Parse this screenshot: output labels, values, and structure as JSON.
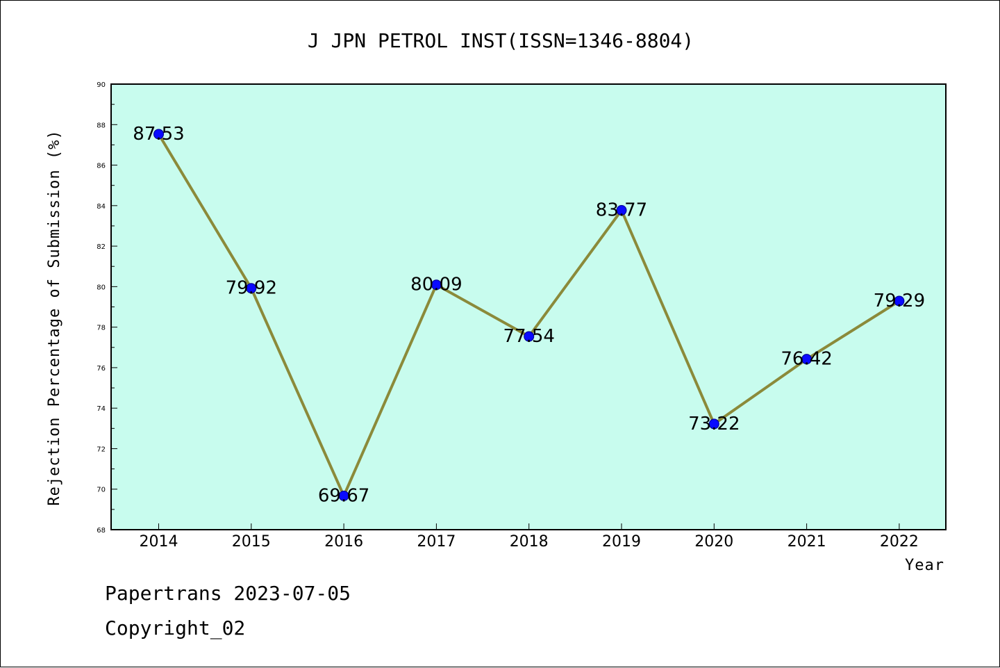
{
  "chart_data": {
    "type": "line",
    "title": "J JPN PETROL INST(ISSN=1346-8804)",
    "xlabel": "Year",
    "ylabel": "Rejection Percentage of Submission (%)",
    "categories": [
      "2014",
      "2015",
      "2016",
      "2017",
      "2018",
      "2019",
      "2020",
      "2021",
      "2022"
    ],
    "series": [
      {
        "values": [
          87.53,
          79.92,
          69.67,
          80.09,
          77.54,
          83.77,
          73.22,
          76.42,
          79.29
        ]
      }
    ],
    "data_labels": [
      "87.53",
      "79.92",
      "69.67",
      "80.09",
      "77.54",
      "83.77",
      "73.22",
      "76.42",
      "79.29"
    ],
    "ylim": [
      68,
      90
    ],
    "yticks": [
      "68",
      "70",
      "72",
      "74",
      "76",
      "78",
      "80",
      "82",
      "84",
      "86",
      "88",
      "90"
    ],
    "grid": false,
    "colors": {
      "plot_background": "#c8fcee",
      "line": "#8b8a3a",
      "marker": "#0a0aff",
      "marker_edge": "#00008b"
    }
  },
  "footer": {
    "line1": "Papertrans 2023-07-05",
    "line2": "Copyright_02"
  }
}
